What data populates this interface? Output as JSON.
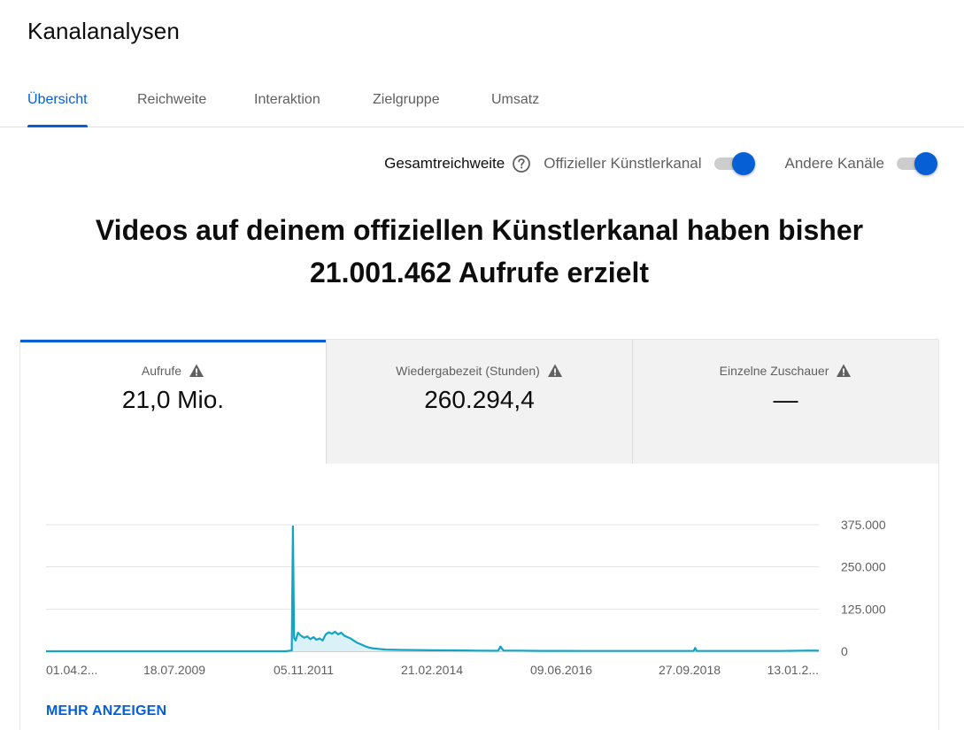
{
  "page": {
    "title": "Kanalanalysen"
  },
  "tabs": [
    {
      "label": "Übersicht",
      "active": true
    },
    {
      "label": "Reichweite",
      "active": false
    },
    {
      "label": "Interaktion",
      "active": false
    },
    {
      "label": "Zielgruppe",
      "active": false
    },
    {
      "label": "Umsatz",
      "active": false
    }
  ],
  "filters": {
    "label": "Gesamtreichweite",
    "help_icon": "help-circle-icon",
    "toggles": [
      {
        "label": "Offizieller Künstlerkanal",
        "on": true
      },
      {
        "label": "Andere Kanäle",
        "on": true
      }
    ],
    "accent_color": "#065fd4"
  },
  "headline": {
    "line1": "Videos auf deinem offiziellen Künstlerkanal haben bisher",
    "line2": "21.001.462 Aufrufe erzielt"
  },
  "metrics": [
    {
      "label": "Aufrufe",
      "value": "21,0 Mio.",
      "icon": "warning-icon",
      "active": true
    },
    {
      "label": "Wiedergabezeit (Stunden)",
      "value": "260.294,4",
      "icon": "warning-icon",
      "active": false
    },
    {
      "label": "Einzelne Zuschauer",
      "value": "—",
      "icon": "warning-icon",
      "active": false
    }
  ],
  "chart_data": {
    "type": "area",
    "x_tick_labels": [
      "01.04.2...",
      "18.07.2009",
      "05.11.2011",
      "21.02.2014",
      "09.06.2016",
      "27.09.2018",
      "13.01.2..."
    ],
    "y_tick_labels": [
      "0",
      "125.000",
      "250.000",
      "375.000"
    ],
    "y_ticks": [
      0,
      125000,
      250000,
      375000
    ],
    "ylim": [
      0,
      375000
    ],
    "x_range_fraction_note": "",
    "line_color": "#12a4c7",
    "fill_color": "#d9f1f7",
    "grid": true,
    "series": [
      {
        "values_by_position": [
          [
            0.0,
            0
          ],
          [
            0.31,
            0
          ],
          [
            0.318,
            2000
          ],
          [
            0.3195,
            370000
          ],
          [
            0.321,
            40000
          ],
          [
            0.323,
            32000
          ],
          [
            0.326,
            55000
          ],
          [
            0.33,
            46000
          ],
          [
            0.334,
            40000
          ],
          [
            0.338,
            44000
          ],
          [
            0.342,
            36000
          ],
          [
            0.346,
            42000
          ],
          [
            0.35,
            34000
          ],
          [
            0.354,
            38000
          ],
          [
            0.358,
            32000
          ],
          [
            0.362,
            50000
          ],
          [
            0.366,
            56000
          ],
          [
            0.37,
            52000
          ],
          [
            0.374,
            58000
          ],
          [
            0.378,
            50000
          ],
          [
            0.382,
            55000
          ],
          [
            0.386,
            46000
          ],
          [
            0.39,
            42000
          ],
          [
            0.394,
            38000
          ],
          [
            0.398,
            32000
          ],
          [
            0.402,
            26000
          ],
          [
            0.406,
            22000
          ],
          [
            0.41,
            18000
          ],
          [
            0.414,
            14000
          ],
          [
            0.418,
            11000
          ],
          [
            0.422,
            9000
          ],
          [
            0.43,
            7000
          ],
          [
            0.44,
            5000
          ],
          [
            0.46,
            4000
          ],
          [
            0.5,
            3000
          ],
          [
            0.53,
            2500
          ],
          [
            0.56,
            1500
          ],
          [
            0.585,
            1200
          ],
          [
            0.588,
            14000
          ],
          [
            0.592,
            2000
          ],
          [
            0.64,
            1000
          ],
          [
            0.7,
            800
          ],
          [
            0.75,
            800
          ],
          [
            0.8,
            700
          ],
          [
            0.838,
            700
          ],
          [
            0.84,
            10000
          ],
          [
            0.842,
            800
          ],
          [
            0.9,
            700
          ],
          [
            0.95,
            700
          ],
          [
            0.99,
            2000
          ],
          [
            1.0,
            1500
          ]
        ]
      }
    ]
  },
  "more_link": {
    "label": "MEHR ANZEIGEN"
  }
}
